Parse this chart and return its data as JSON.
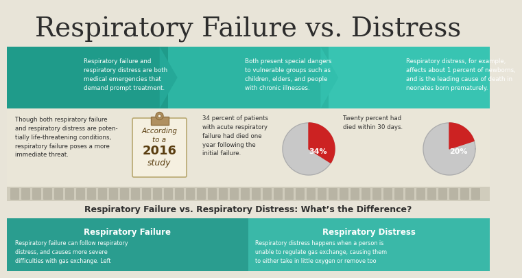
{
  "title": "Respiratory Failure vs. Distress",
  "bg_color": "#e8e4d8",
  "teal_dark": "#1f9b8a",
  "teal_mid": "#2db5a3",
  "teal_arrow": "#25a898",
  "teal_light": "#38c4b2",
  "middle_bg": "#eae6d8",
  "filmstrip_bg": "#d8d4c4",
  "dot_color": "#c4c0b0",
  "bottom_title_bg": "#eae6d8",
  "bottom_left": "#2a9d8f",
  "bottom_right": "#3ab8a8",
  "red": "#cc2222",
  "gray_pie": "#c8c8c8",
  "text_dark": "#2d2d2d",
  "text_white": "#ffffff",
  "col1_text": "Respiratory failure and\nrespiratory distress are both\nmedical emergencies that\ndemand prompt treatment.",
  "col2_text": "Both present special dangers\nto vulnerable groups such as\nchildren, elders, and people\nwith chronic illnesses.",
  "col3_text": "Respiratory distress, for example,\naffects about 1 percent of newborns,\nand is the leading cause of death in\nneonates born prematurely.",
  "left_text": "Though both respiratory failure\nand respiratory distress are poten-\ntially life-threatening conditions,\nrespiratory failure poses a more\nimmediate threat.",
  "clipboard_line1": "According",
  "clipboard_line2": "to a",
  "clipboard_line3": "2016",
  "clipboard_line4": "study",
  "pie1_text": "34 percent of patients\nwith acute respiratory\nfailure had died one\nyear following the\ninitial failure.",
  "pie1_pct": 34,
  "pie1_label": "34%",
  "pie2_text": "Twenty percent had\ndied within 30 days.",
  "pie2_pct": 20,
  "pie2_label": "20%",
  "bottom_title": "Respiratory Failure vs. Respiratory Distress: What’s the Difference?",
  "bottom_left_title": "Respiratory Failure",
  "bottom_right_title": "Respiratory Distress",
  "bottom_left_body": "Respiratory failure can follow respiratory\ndistress, and causes more severe\ndifficulties with gas exchange. Left",
  "bottom_right_body": "Respiratory distress happens when a person is\nunable to regulate gas exchange, causing them\nto either take in little oxygen or remove too"
}
